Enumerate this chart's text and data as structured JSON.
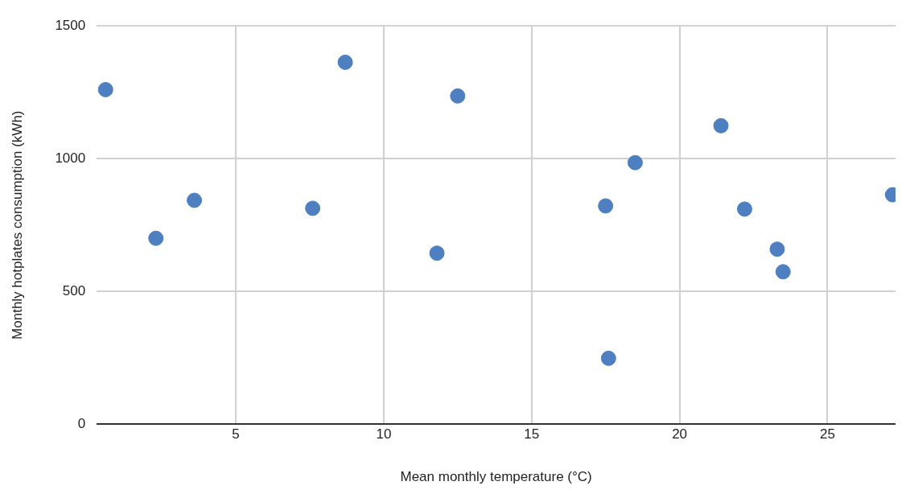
{
  "chart_data": {
    "type": "scatter",
    "xlabel": "Mean monthly temperature (°C)",
    "ylabel": "Monthly hotplates consumption (kWh)",
    "x": [
      0.6,
      2.3,
      3.6,
      7.6,
      8.7,
      11.8,
      12.5,
      17.5,
      17.6,
      18.5,
      21.4,
      22.2,
      23.3,
      23.5,
      27.2
    ],
    "series": [
      {
        "color": "#4e7fc0",
        "values": [
          1260,
          700,
          843,
          813,
          1363,
          644,
          1236,
          822,
          248,
          985,
          1124,
          810,
          659,
          574,
          864
        ]
      }
    ],
    "xlim": [
      0.3,
      27.3
    ],
    "xticks": [
      5,
      10,
      15,
      20,
      25
    ],
    "ylim": [
      0,
      1500
    ],
    "yticks": [
      0,
      500,
      1000,
      1500
    ],
    "grid": true,
    "legend": false,
    "marker": "circle"
  }
}
